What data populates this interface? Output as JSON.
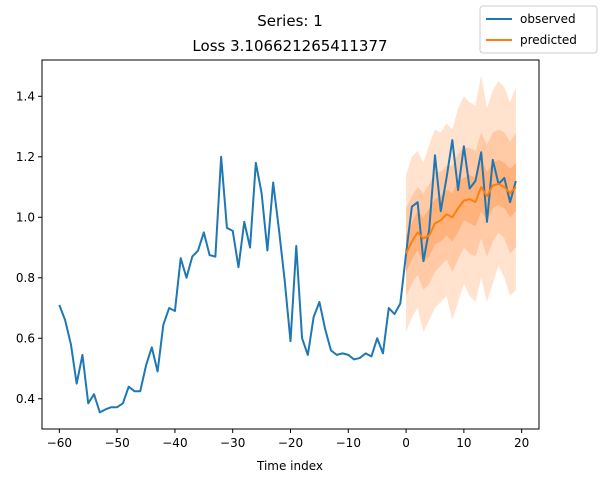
{
  "chart_data": {
    "type": "line",
    "title": "Series: 1",
    "subtitle": "Loss 3.106621265411377",
    "xlabel": "Time index",
    "ylabel": "",
    "xlim": [
      -63,
      23
    ],
    "ylim": [
      0.3,
      1.52
    ],
    "xticks": [
      "-60",
      "-50",
      "-40",
      "-30",
      "-20",
      "-10",
      "0",
      "10",
      "20"
    ],
    "yticks": [
      "0.4",
      "0.6",
      "0.8",
      "1.0",
      "1.2",
      "1.4"
    ],
    "grid": false,
    "legend": "top-right",
    "series": [
      {
        "name": "observed",
        "color": "#1f77b4",
        "x": [
          -60,
          -59,
          -58,
          -57,
          -56,
          -55,
          -54,
          -53,
          -52,
          -51,
          -50,
          -49,
          -48,
          -47,
          -46,
          -45,
          -44,
          -43,
          -42,
          -41,
          -40,
          -39,
          -38,
          -37,
          -36,
          -35,
          -34,
          -33,
          -32,
          -31,
          -30,
          -29,
          -28,
          -27,
          -26,
          -25,
          -24,
          -23,
          -22,
          -21,
          -20,
          -19,
          -18,
          -17,
          -16,
          -15,
          -14,
          -13,
          -12,
          -11,
          -10,
          -9,
          -8,
          -7,
          -6,
          -5,
          -4,
          -3,
          -2,
          -1,
          0,
          1,
          2,
          3,
          4,
          5,
          6,
          7,
          8,
          9,
          10,
          11,
          12,
          13,
          14,
          15,
          16,
          17,
          18,
          19
        ],
        "values": [
          0.71,
          0.66,
          0.58,
          0.45,
          0.545,
          0.385,
          0.415,
          0.355,
          0.365,
          0.372,
          0.372,
          0.385,
          0.44,
          0.425,
          0.425,
          0.51,
          0.57,
          0.49,
          0.645,
          0.7,
          0.69,
          0.865,
          0.8,
          0.87,
          0.89,
          0.95,
          0.875,
          0.87,
          1.2,
          0.965,
          0.955,
          0.835,
          0.985,
          0.9,
          1.18,
          1.08,
          0.89,
          1.115,
          0.96,
          0.79,
          0.59,
          0.905,
          0.6,
          0.545,
          0.67,
          0.72,
          0.63,
          0.56,
          0.545,
          0.55,
          0.545,
          0.53,
          0.535,
          0.55,
          0.54,
          0.6,
          0.55,
          0.7,
          0.68,
          0.715,
          0.88,
          1.035,
          1.05,
          0.855,
          0.96,
          1.205,
          1.02,
          1.13,
          1.255,
          1.09,
          1.235,
          1.095,
          1.12,
          1.215,
          0.985,
          1.19,
          1.11,
          1.13,
          1.05,
          1.12
        ]
      },
      {
        "name": "predicted",
        "color": "#ff7f0e",
        "x": [
          0,
          1,
          2,
          3,
          4,
          5,
          6,
          7,
          8,
          9,
          10,
          11,
          12,
          13,
          14,
          15,
          16,
          17,
          18,
          19
        ],
        "values": [
          0.88,
          0.92,
          0.95,
          0.93,
          0.94,
          0.98,
          0.99,
          1.01,
          1.0,
          1.03,
          1.055,
          1.06,
          1.05,
          1.1,
          1.07,
          1.105,
          1.11,
          1.1,
          1.08,
          1.1
        ],
        "bands": [
          {
            "lower": [
              0.62,
              0.67,
              0.7,
              0.62,
              0.66,
              0.7,
              0.72,
              0.74,
              0.66,
              0.72,
              0.78,
              0.74,
              0.72,
              0.8,
              0.72,
              0.78,
              0.84,
              0.8,
              0.74,
              0.76
            ],
            "upper": [
              1.14,
              1.2,
              1.22,
              1.18,
              1.24,
              1.29,
              1.28,
              1.31,
              1.29,
              1.36,
              1.4,
              1.38,
              1.37,
              1.47,
              1.36,
              1.42,
              1.45,
              1.43,
              1.38,
              1.43
            ]
          },
          {
            "lower": [
              0.74,
              0.78,
              0.81,
              0.76,
              0.78,
              0.82,
              0.84,
              0.86,
              0.82,
              0.86,
              0.9,
              0.88,
              0.87,
              0.93,
              0.87,
              0.92,
              0.95,
              0.93,
              0.88,
              0.9
            ],
            "upper": [
              1.03,
              1.07,
              1.1,
              1.08,
              1.11,
              1.15,
              1.15,
              1.17,
              1.17,
              1.21,
              1.23,
              1.23,
              1.22,
              1.28,
              1.24,
              1.28,
              1.29,
              1.28,
              1.25,
              1.28
            ]
          },
          {
            "lower": [
              0.82,
              0.86,
              0.89,
              0.85,
              0.87,
              0.91,
              0.92,
              0.94,
              0.92,
              0.95,
              0.99,
              0.98,
              0.97,
              1.02,
              0.99,
              1.03,
              1.04,
              1.03,
              1.0,
              1.02
            ],
            "upper": [
              0.94,
              0.98,
              1.02,
              1.0,
              1.03,
              1.06,
              1.07,
              1.09,
              1.08,
              1.12,
              1.13,
              1.14,
              1.13,
              1.19,
              1.15,
              1.18,
              1.19,
              1.18,
              1.16,
              1.18
            ]
          }
        ]
      }
    ]
  }
}
